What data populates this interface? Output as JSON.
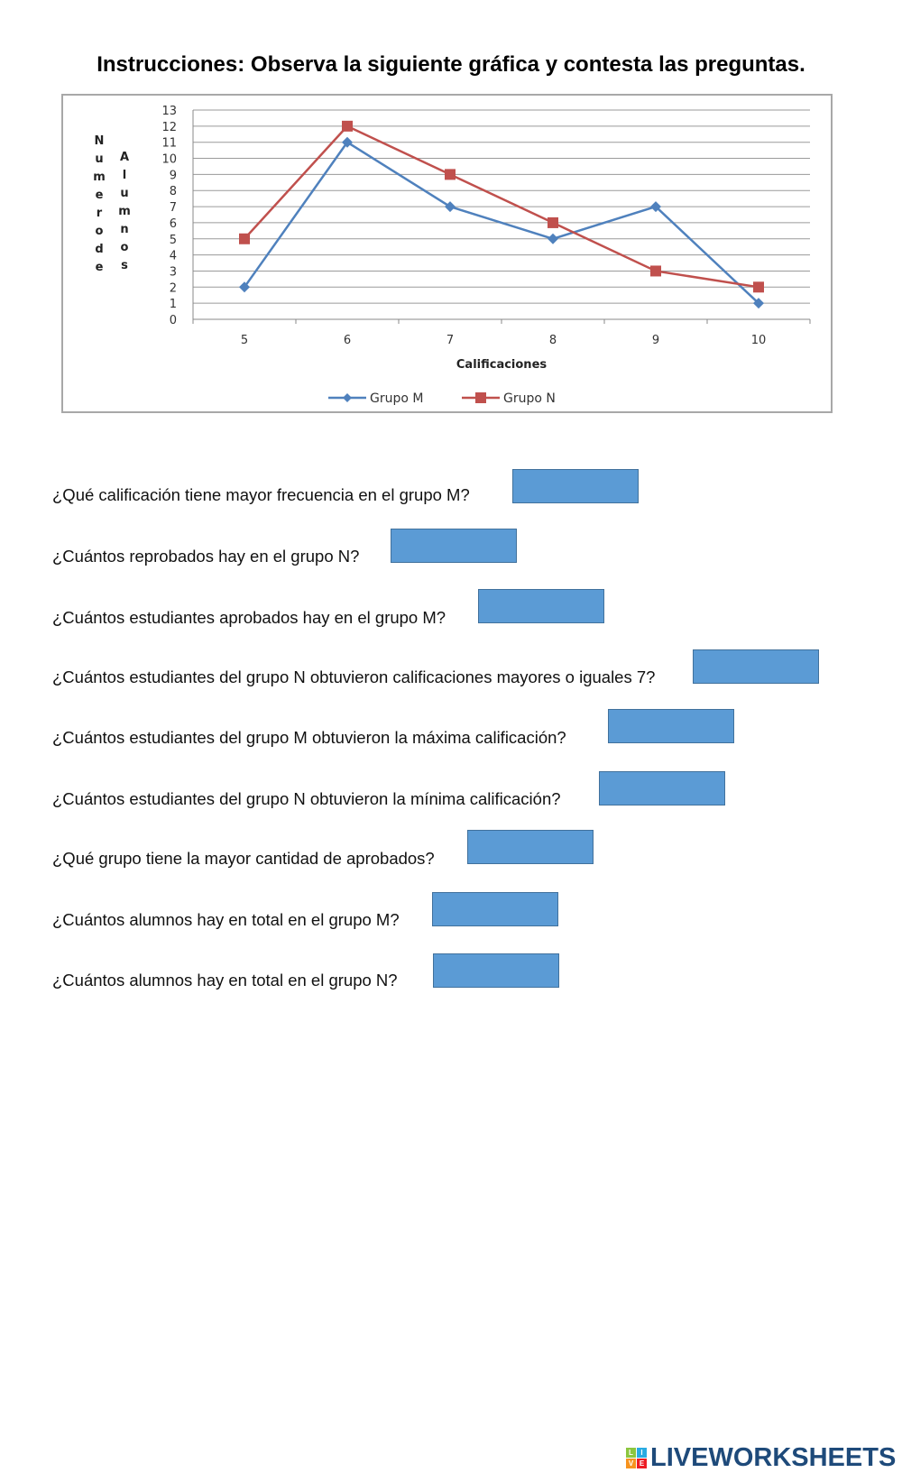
{
  "title": "Instrucciones: Observa la siguiente gráfica y contesta las preguntas.",
  "chart_data": {
    "type": "line",
    "categories": [
      "5",
      "6",
      "7",
      "8",
      "9",
      "10"
    ],
    "series": [
      {
        "name": "Grupo M",
        "color": "#4f81bd",
        "marker": "diamond",
        "values": [
          2,
          11,
          7,
          5,
          7,
          1
        ]
      },
      {
        "name": "Grupo N",
        "color": "#c0504d",
        "marker": "square",
        "values": [
          5,
          12,
          9,
          6,
          3,
          2
        ]
      }
    ],
    "xlabel": "Calificaciones",
    "ylabel_lines": [
      "Numero de",
      "Alumnos"
    ],
    "ylim": [
      0,
      13
    ],
    "yticks": [
      0,
      1,
      2,
      3,
      4,
      5,
      6,
      7,
      8,
      9,
      10,
      11,
      12,
      13
    ],
    "grid": true,
    "legend": "bottom"
  },
  "questions": [
    {
      "text": "¿Qué calificación tiene mayor frecuencia en el grupo M?",
      "answer": ""
    },
    {
      "text": "¿Cuántos reprobados hay en el grupo N?",
      "answer": ""
    },
    {
      "text": "¿Cuántos estudiantes aprobados hay en el grupo M?",
      "answer": ""
    },
    {
      "text": "¿Cuántos estudiantes del grupo N obtuvieron calificaciones mayores o iguales 7?",
      "answer": ""
    },
    {
      "text": "¿Cuántos estudiantes del grupo M obtuvieron la máxima calificación?",
      "answer": ""
    },
    {
      "text": "¿Cuántos estudiantes del grupo N obtuvieron la mínima calificación?",
      "answer": ""
    },
    {
      "text": "¿Qué grupo tiene la mayor cantidad de aprobados?",
      "answer": ""
    },
    {
      "text": "¿Cuántos alumnos hay en total en el grupo M?",
      "answer": ""
    },
    {
      "text": "¿Cuántos alumnos hay en total en el grupo N?",
      "answer": ""
    }
  ],
  "answer_box_color": "#5b9bd5",
  "logo": {
    "text": "LIVEWORKSHEETS",
    "badge": "LIVE"
  }
}
